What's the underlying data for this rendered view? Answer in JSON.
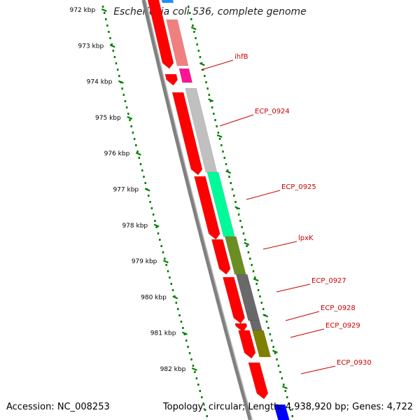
{
  "title": "Escherichia coli 536, complete genome",
  "accession": "Accession: NC_008253",
  "stats": "Topology: circular; Length: 4,938,920 bp; Genes: 4,722",
  "ticks": [
    "972 kbp",
    "973 kbp",
    "974 kbp",
    "975 kbp",
    "976 kbp",
    "977 kbp",
    "978 kbp",
    "979 kbp",
    "980 kbp",
    "981 kbp",
    "982 kbp"
  ],
  "colors": {
    "tick": "#008000",
    "backbone": "#808080",
    "gene_forward": "#ff0000",
    "label": "#cc0000",
    "ihfB": "#f08080",
    "ihfB_small": "#ff1493",
    "ECP_0924": "#c0c0c0",
    "ECP_0925": "#00fa9a",
    "lpxK": "#6b8e23",
    "ECP_0927": "#696969",
    "ECP_0928": "#808000",
    "top_blue": "#1e90ff",
    "bottom_blue": "#0000ff"
  },
  "genes": [
    {
      "label": "ihfB"
    },
    {
      "label": "ECP_0924"
    },
    {
      "label": "ECP_0925"
    },
    {
      "label": "lpxK"
    },
    {
      "label": "ECP_0927"
    },
    {
      "label": "ECP_0928"
    },
    {
      "label": "ECP_0929"
    },
    {
      "label": "ECP_0930"
    }
  ]
}
